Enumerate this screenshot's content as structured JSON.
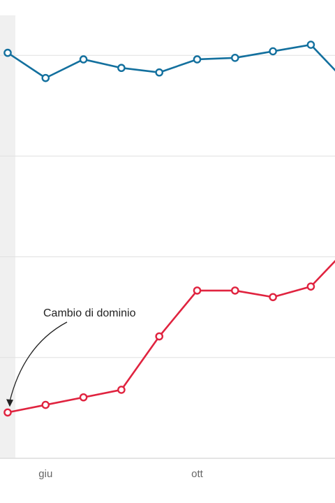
{
  "chart_data": {
    "type": "line",
    "x_tick_labels": [
      "giu",
      "ott"
    ],
    "x_tick_indices": [
      1,
      5
    ],
    "ylim": [
      0,
      100
    ],
    "y_gridlines": [
      20,
      40,
      60,
      80
    ],
    "grid": "horizontal",
    "legend": "none",
    "highlight_band_index": 0,
    "series": [
      {
        "color": "#13709e",
        "values": [
          80.5,
          75.5,
          79.2,
          77.5,
          76.6,
          79.2,
          79.5,
          80.8,
          82.1,
          74.2
        ]
      },
      {
        "color": "#e0233f",
        "values": [
          9.1,
          10.6,
          12.1,
          13.6,
          24.2,
          33.3,
          33.3,
          32.0,
          34.1,
          42.0
        ]
      }
    ],
    "annotations": [
      {
        "text": "Cambio di dominio",
        "series": 1,
        "index": 0
      }
    ],
    "colors": {
      "band": "#f0f0f0",
      "grid": "#e0e0e0",
      "axis": "#dcdcdc",
      "arrow": "#222222"
    }
  }
}
